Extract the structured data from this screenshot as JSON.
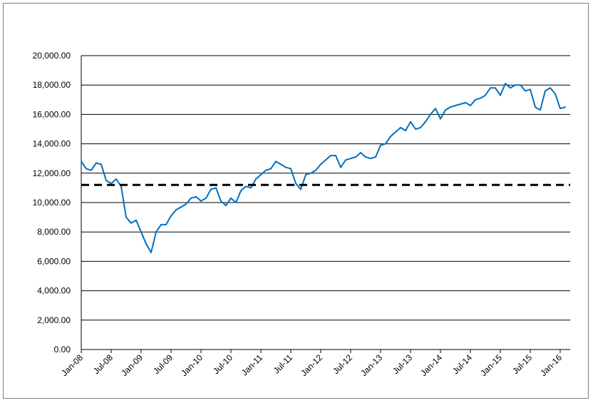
{
  "chart_data": {
    "type": "line",
    "title": "",
    "xlabel": "",
    "ylabel": "",
    "ylim": [
      0,
      20000
    ],
    "yticks": [
      0,
      2000,
      4000,
      6000,
      8000,
      10000,
      12000,
      14000,
      16000,
      18000,
      20000
    ],
    "ytick_labels": [
      "0.00",
      "2,000.00",
      "4,000.00",
      "6,000.00",
      "8,000.00",
      "10,000.00",
      "12,000.00",
      "14,000.00",
      "16,000.00",
      "18,000.00",
      "20,000.00"
    ],
    "xtick_labels": [
      "Jan-08",
      "Jul-08",
      "Jan-09",
      "Jul-09",
      "Jan-10",
      "Jul-10",
      "Jan-11",
      "Jul-11",
      "Jan-12",
      "Jul-12",
      "Jan-13",
      "Jul-13",
      "Jan-14",
      "Jul-14",
      "Jan-15",
      "Jul-15",
      "Jan-16"
    ],
    "xlim": [
      "Jan-08",
      "Mar-16"
    ],
    "grid": true,
    "legend": "none",
    "colors": {
      "series": "#0070c0",
      "reference": "#000000",
      "grid": "#000000"
    },
    "series": [
      {
        "style": "solid",
        "x": [
          "Jan-08",
          "Feb-08",
          "Mar-08",
          "Apr-08",
          "May-08",
          "Jun-08",
          "Jul-08",
          "Aug-08",
          "Sep-08",
          "Oct-08",
          "Nov-08",
          "Dec-08",
          "Jan-09",
          "Feb-09",
          "Mar-09",
          "Apr-09",
          "May-09",
          "Jun-09",
          "Jul-09",
          "Aug-09",
          "Sep-09",
          "Oct-09",
          "Nov-09",
          "Dec-09",
          "Jan-10",
          "Feb-10",
          "Mar-10",
          "Apr-10",
          "May-10",
          "Jun-10",
          "Jul-10",
          "Aug-10",
          "Sep-10",
          "Oct-10",
          "Nov-10",
          "Dec-10",
          "Jan-11",
          "Feb-11",
          "Mar-11",
          "Apr-11",
          "May-11",
          "Jun-11",
          "Jul-11",
          "Aug-11",
          "Sep-11",
          "Oct-11",
          "Nov-11",
          "Dec-11",
          "Jan-12",
          "Feb-12",
          "Mar-12",
          "Apr-12",
          "May-12",
          "Jun-12",
          "Jul-12",
          "Aug-12",
          "Sep-12",
          "Oct-12",
          "Nov-12",
          "Dec-12",
          "Jan-13",
          "Feb-13",
          "Mar-13",
          "Apr-13",
          "May-13",
          "Jun-13",
          "Jul-13",
          "Aug-13",
          "Sep-13",
          "Oct-13",
          "Nov-13",
          "Dec-13",
          "Jan-14",
          "Feb-14",
          "Mar-14",
          "Apr-14",
          "May-14",
          "Jun-14",
          "Jul-14",
          "Aug-14",
          "Sep-14",
          "Oct-14",
          "Nov-14",
          "Dec-14",
          "Jan-15",
          "Feb-15",
          "Mar-15",
          "Apr-15",
          "May-15",
          "Jun-15",
          "Jul-15",
          "Aug-15",
          "Sep-15",
          "Oct-15",
          "Nov-15",
          "Dec-15",
          "Jan-16",
          "Feb-16"
        ],
        "values": [
          12800,
          12300,
          12200,
          12700,
          12600,
          11500,
          11300,
          11600,
          11100,
          9000,
          8600,
          8800,
          8000,
          7200,
          6600,
          8000,
          8500,
          8500,
          9100,
          9500,
          9700,
          9900,
          10300,
          10400,
          10100,
          10300,
          10900,
          11000,
          10100,
          9800,
          10300,
          10000,
          10800,
          11100,
          11000,
          11600,
          11900,
          12200,
          12300,
          12800,
          12600,
          12400,
          12300,
          11300,
          10900,
          11900,
          12000,
          12200,
          12600,
          12900,
          13200,
          13200,
          12400,
          12900,
          13000,
          13100,
          13400,
          13100,
          13000,
          13100,
          13900,
          14000,
          14500,
          14800,
          15100,
          14900,
          15500,
          15000,
          15100,
          15500,
          16000,
          16400,
          15700,
          16300,
          16500,
          16600,
          16700,
          16800,
          16600,
          17000,
          17100,
          17300,
          17800,
          17800,
          17300,
          18100,
          17800,
          18000,
          18000,
          17600,
          17700,
          16500,
          16300,
          17600,
          17800,
          17400,
          16400,
          16500
        ]
      },
      {
        "style": "dashed",
        "x": [
          "Jan-08",
          "Mar-16"
        ],
        "values": [
          11200,
          11200
        ]
      }
    ]
  }
}
